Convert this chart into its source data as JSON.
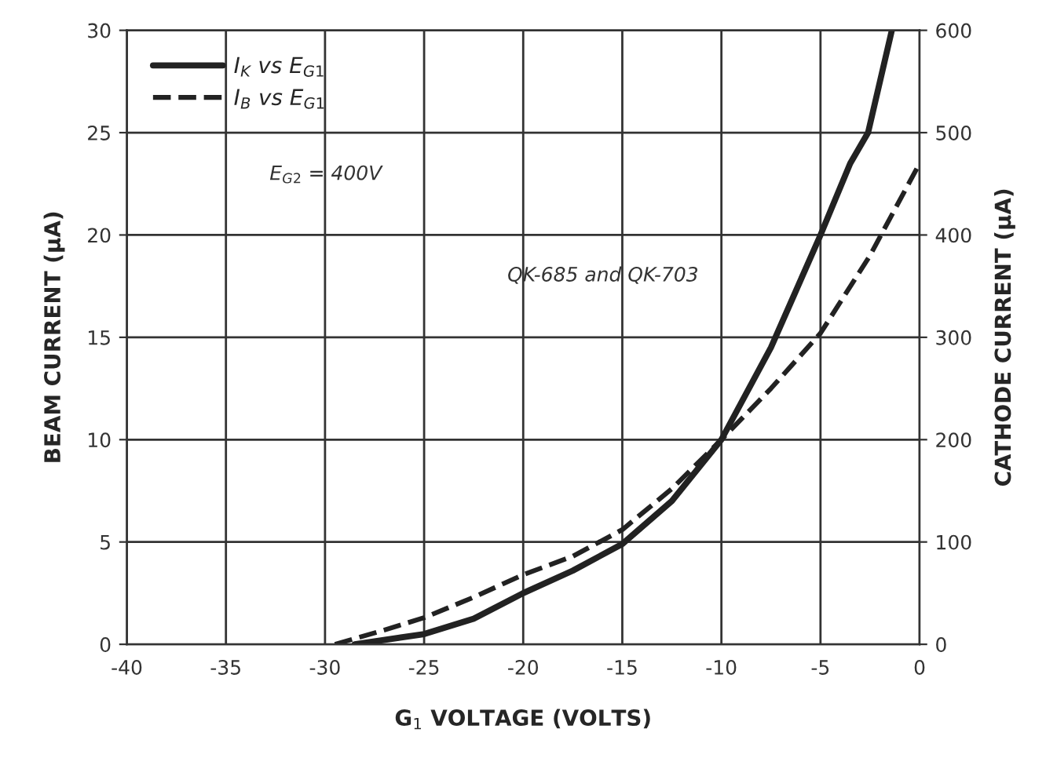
{
  "chart_data": {
    "type": "line",
    "xlabel": "G$_{1}$ VOLTAGE (VOLTS)",
    "ylabel": "BEAM CURRENT (μA)",
    "y2label": "CATHODE CURRENT (μA)",
    "xlim": [
      -40,
      0
    ],
    "xticks": [
      -40,
      -35,
      -30,
      -25,
      -20,
      -15,
      -10,
      -5,
      0
    ],
    "ylim": [
      0,
      30
    ],
    "yticks": [
      0,
      5,
      10,
      15,
      20,
      25,
      30
    ],
    "y2lim": [
      0,
      600
    ],
    "y2ticks": [
      0,
      100,
      200,
      300,
      400,
      500,
      600
    ],
    "grid": true,
    "legend": "top left",
    "annotations": [
      "E$_{G2}$ = 400V",
      "QK-685 and QK-703"
    ],
    "series": [
      {
        "name": "I$_{K}$ vs E$_{G1}$",
        "color": "#222222",
        "axis": "y2",
        "line_style": "solid",
        "x": [
          -28.5,
          -25,
          -22.5,
          -20,
          -17.5,
          -15,
          -12.5,
          -10,
          -7.5,
          -5,
          -3.5,
          -2.6,
          -1.4
        ],
        "values": [
          0,
          10,
          25,
          50,
          72,
          98,
          140,
          200,
          290,
          400,
          470,
          500,
          600
        ]
      },
      {
        "name": "I$_{B}$ vs E$_{G1}$",
        "color": "#222222",
        "axis": "y",
        "line_style": "dashed",
        "x": [
          -29.5,
          -27,
          -25,
          -22.5,
          -20,
          -17.5,
          -15,
          -12.5,
          -10,
          -7.5,
          -5,
          -2.5,
          0
        ],
        "values": [
          0,
          0.7,
          1.3,
          2.3,
          3.4,
          4.3,
          5.6,
          7.6,
          10,
          12.5,
          15.2,
          19,
          23.5
        ]
      }
    ]
  }
}
